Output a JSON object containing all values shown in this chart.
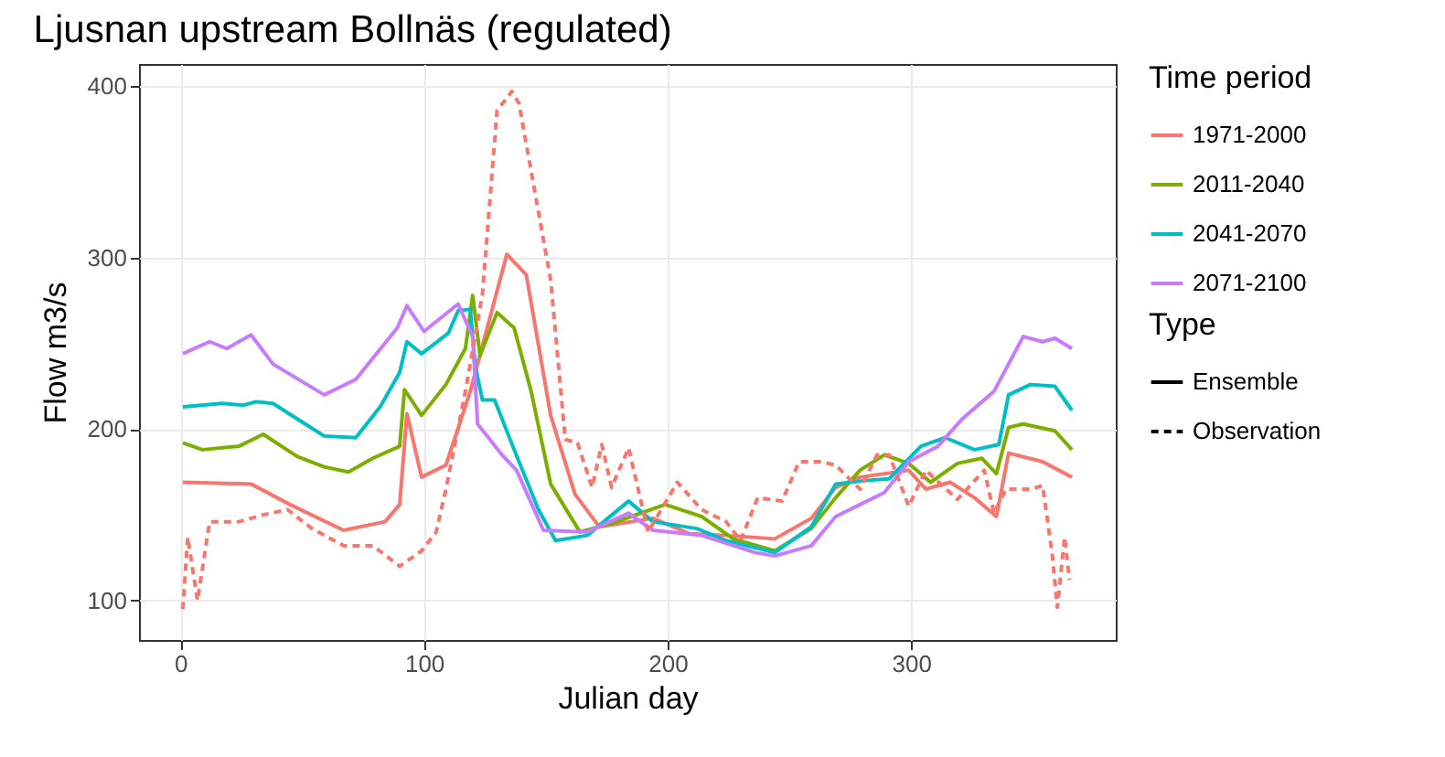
{
  "chart_data": {
    "type": "line",
    "title": "Ljusnan upstream Bollnäs (regulated)",
    "xlabel": "Julian day",
    "ylabel": "Flow m3/s",
    "legend_title": [
      "Time period",
      "Type"
    ],
    "annotations": [
      "Ensemble",
      "Observation"
    ],
    "xlim": [
      -17,
      384
    ],
    "xticks": [
      0,
      100,
      200,
      300
    ],
    "ylim": [
      77,
      413
    ],
    "yticks": [
      100,
      200,
      300,
      400
    ],
    "grid": true,
    "legend": "right",
    "series": [
      {
        "name": "1971-2000",
        "color": "#f8766d",
        "line_style": "solid",
        "x": [
          1,
          29,
          45,
          67,
          84,
          90,
          93,
          99,
          109,
          119,
          134,
          142,
          152,
          162,
          172,
          194,
          209,
          224,
          244,
          259,
          269,
          279,
          299,
          306,
          316,
          326,
          335,
          340,
          354,
          366
        ],
        "values": [
          169,
          168,
          156,
          141,
          146,
          156,
          209,
          172,
          179,
          222,
          302,
          290,
          208,
          162,
          143,
          148,
          139,
          138,
          136,
          148,
          166,
          172,
          176,
          165,
          169,
          160,
          149,
          186,
          181,
          172
        ]
      },
      {
        "name": "2011-2040",
        "color": "#7cae00",
        "line_style": "solid",
        "x": [
          1,
          9,
          24,
          34,
          48,
          59,
          69,
          79,
          90,
          92,
          99,
          109,
          117,
          120,
          123,
          130,
          137,
          144,
          152,
          164,
          177,
          199,
          214,
          227,
          244,
          259,
          269,
          279,
          289,
          299,
          308,
          319,
          329,
          335,
          340,
          346,
          359,
          366
        ],
        "values": [
          192,
          188,
          190,
          197,
          184,
          178,
          175,
          183,
          190,
          223,
          208,
          226,
          247,
          278,
          243,
          268,
          259,
          222,
          168,
          140,
          145,
          156,
          149,
          136,
          129,
          142,
          160,
          176,
          185,
          180,
          169,
          180,
          183,
          174,
          201,
          203,
          199,
          188
        ]
      },
      {
        "name": "2041-2070",
        "color": "#00bfc4",
        "line_style": "solid",
        "x": [
          1,
          17,
          26,
          31,
          38,
          49,
          59,
          72,
          82,
          90,
          93,
          99,
          110,
          114,
          119,
          121,
          124,
          129,
          137,
          147,
          154,
          167,
          184,
          194,
          212,
          224,
          244,
          259,
          269,
          281,
          291,
          304,
          314,
          326,
          336,
          340,
          349,
          359,
          366
        ],
        "values": [
          213,
          215,
          214,
          216,
          215,
          205,
          196,
          195,
          213,
          233,
          251,
          244,
          256,
          269,
          270,
          237,
          217,
          217,
          188,
          153,
          135,
          138,
          158,
          146,
          142,
          135,
          128,
          143,
          168,
          170,
          171,
          190,
          195,
          188,
          191,
          220,
          226,
          225,
          211
        ]
      },
      {
        "name": "2071-2100",
        "color": "#c77cff",
        "line_style": "solid",
        "x": [
          1,
          12,
          19,
          29,
          38,
          59,
          72,
          89,
          93,
          100,
          114,
          120,
          122,
          132,
          138,
          149,
          167,
          184,
          194,
          214,
          236,
          244,
          259,
          269,
          279,
          289,
          299,
          311,
          321,
          334,
          346,
          354,
          359,
          366
        ],
        "values": [
          244,
          251,
          247,
          255,
          238,
          220,
          229,
          259,
          272,
          257,
          273,
          254,
          203,
          185,
          176,
          141,
          140,
          151,
          141,
          138,
          128,
          126,
          132,
          149,
          156,
          163,
          181,
          190,
          206,
          222,
          254,
          251,
          253,
          247
        ]
      },
      {
        "color": "#f8766d",
        "line_style": "dashed",
        "x": [
          1,
          3,
          7,
          12,
          24,
          34,
          44,
          54,
          67,
          79,
          90,
          99,
          105,
          109,
          117,
          124,
          130,
          134,
          136,
          139,
          152,
          158,
          163,
          169,
          173,
          177,
          184,
          192,
          204,
          214,
          224,
          230,
          237,
          247,
          254,
          263,
          269,
          279,
          286,
          291,
          299,
          306,
          319,
          330,
          334,
          339,
          349,
          354,
          358,
          360,
          363,
          365
        ],
        "values": [
          95,
          137,
          100,
          146,
          146,
          150,
          153,
          142,
          132,
          132,
          120,
          129,
          140,
          165,
          222,
          279,
          386,
          393,
          397,
          390,
          287,
          194,
          192,
          166,
          191,
          166,
          189,
          140,
          169,
          153,
          146,
          135,
          160,
          158,
          181,
          181,
          179,
          165,
          185,
          185,
          155,
          176,
          159,
          176,
          151,
          165,
          165,
          167,
          126,
          96,
          137,
          112
        ]
      }
    ]
  }
}
